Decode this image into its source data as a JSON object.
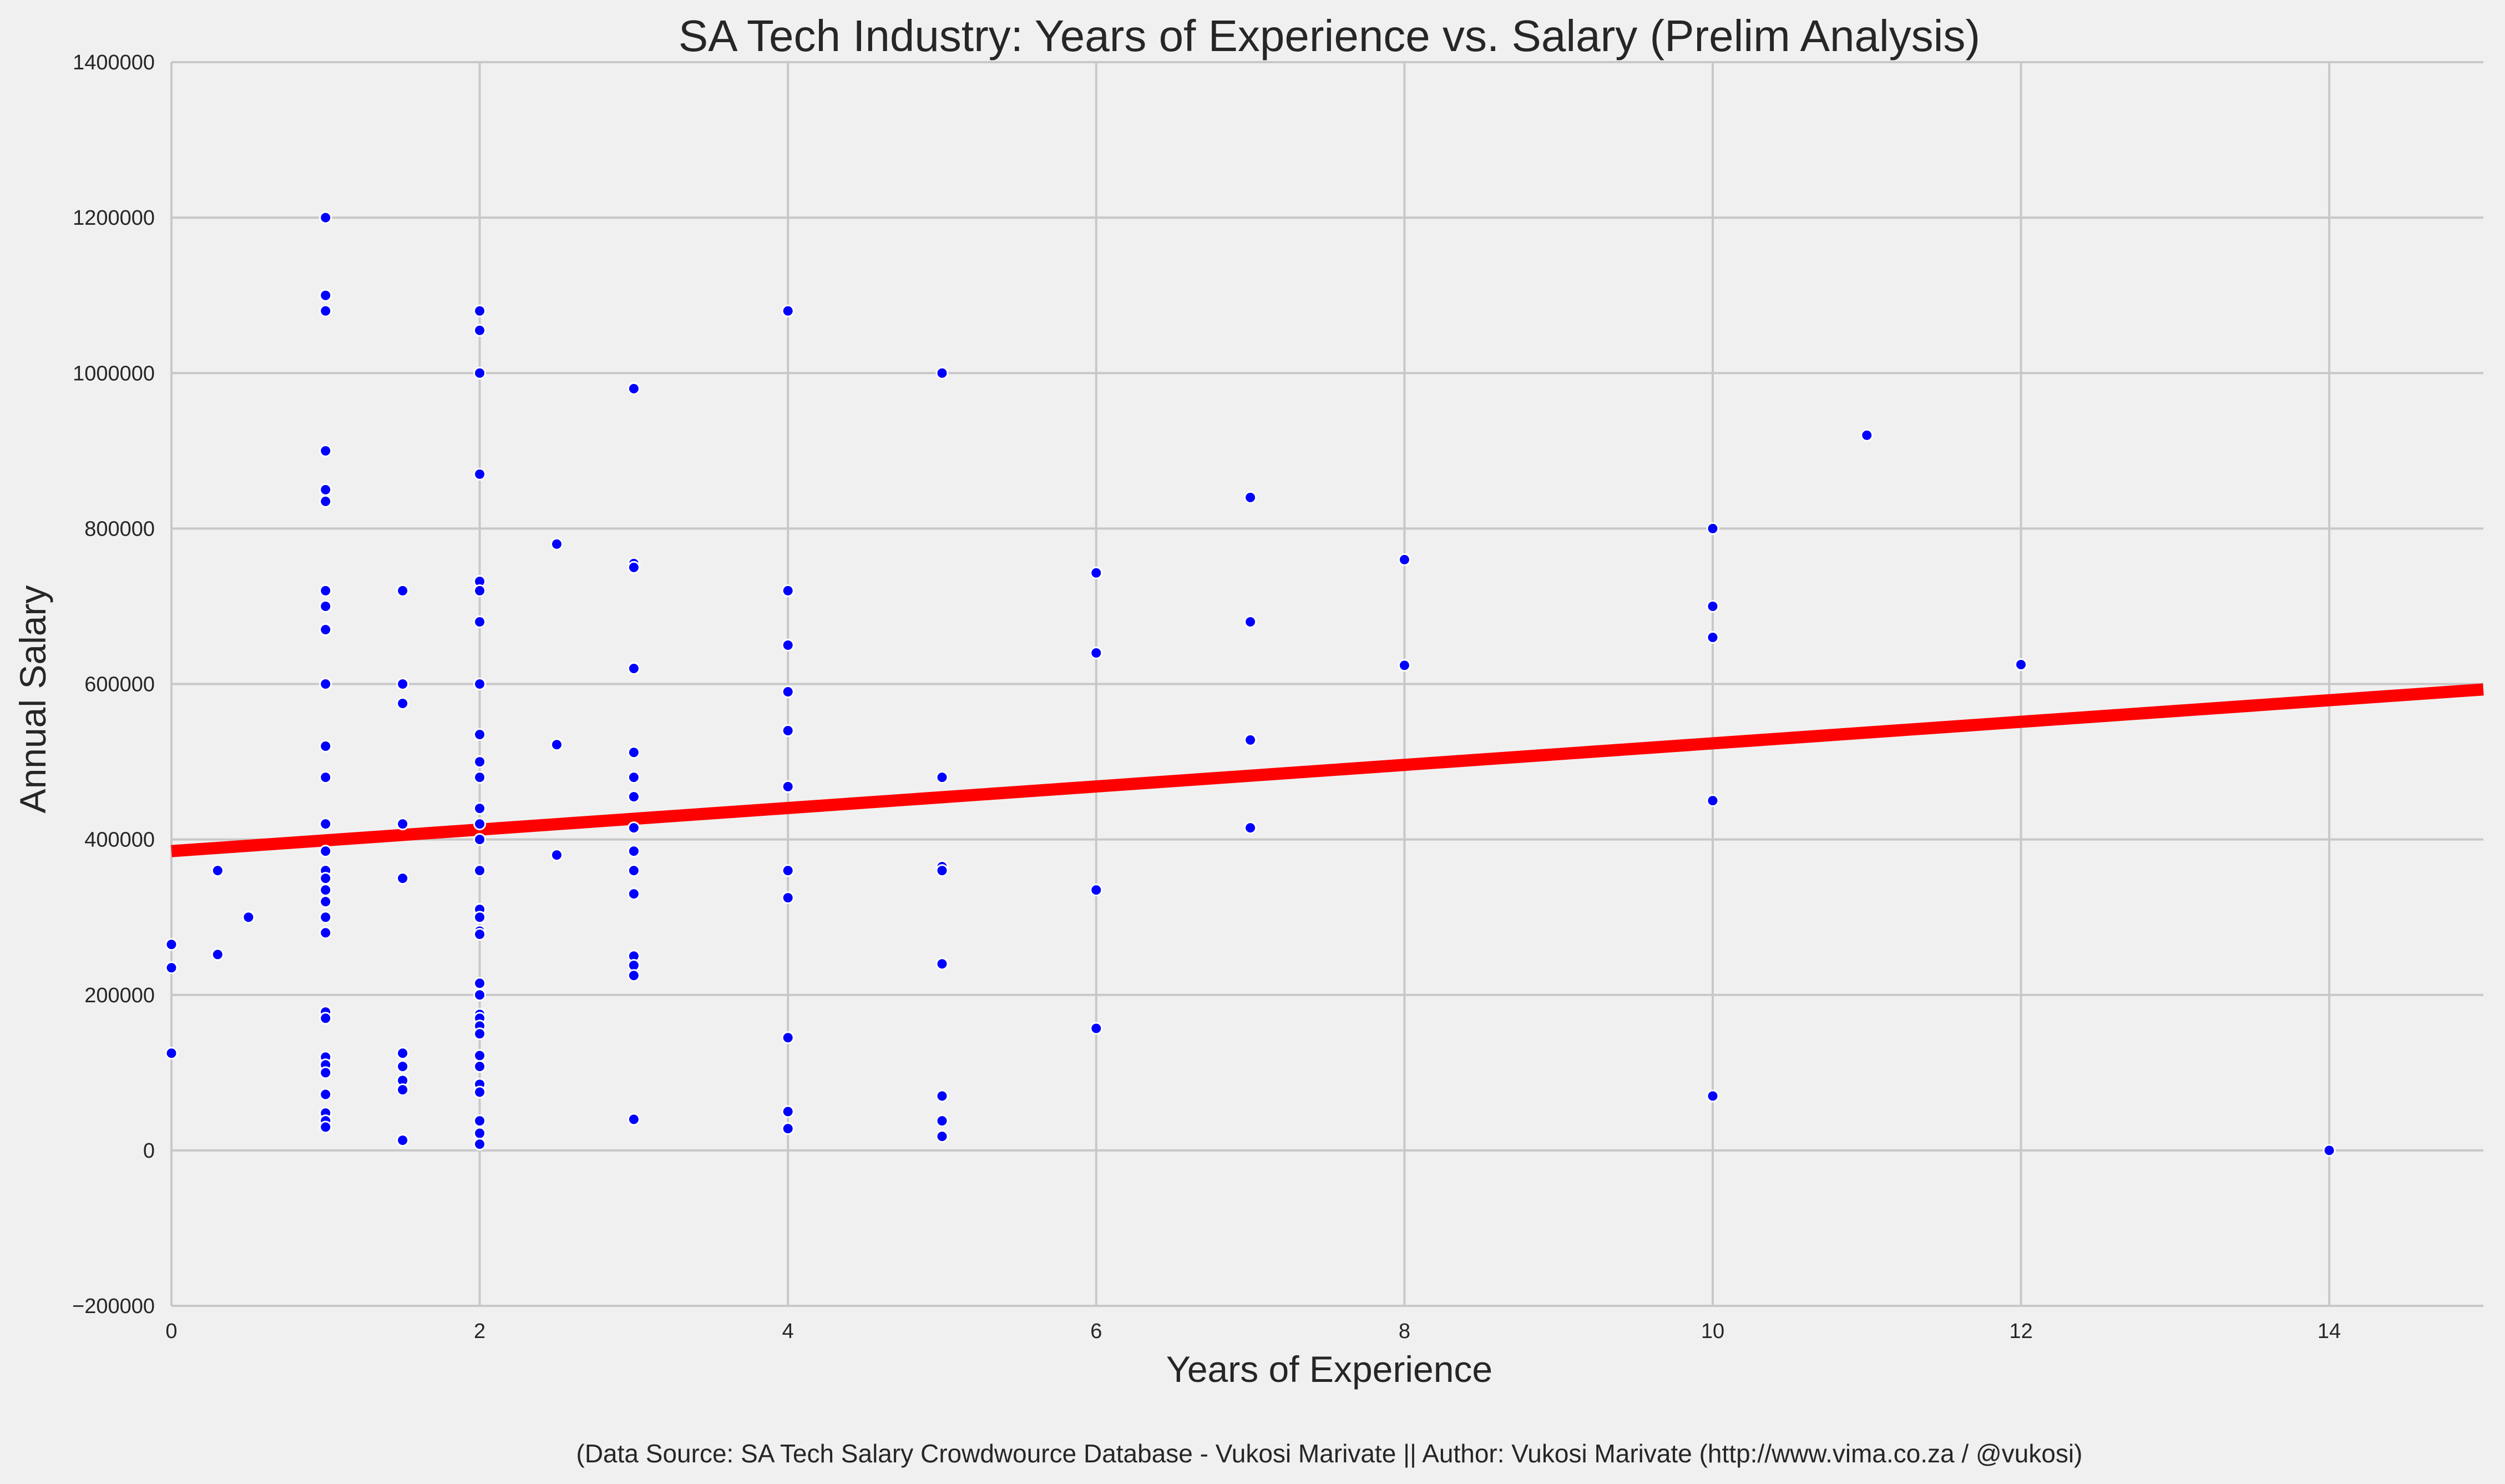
{
  "chart_data": {
    "type": "scatter",
    "title": "SA Tech Industry: Years of Experience vs. Salary (Prelim Analysis)",
    "xlabel": "Years of Experience",
    "ylabel": "Annual Salary",
    "xlim": [
      0,
      15
    ],
    "ylim": [
      -200000,
      1400000
    ],
    "xticks": [
      0,
      2,
      4,
      6,
      8,
      10,
      12,
      14
    ],
    "yticks": [
      -200000,
      0,
      200000,
      400000,
      600000,
      800000,
      1000000,
      1200000,
      1400000
    ],
    "grid": true,
    "colors": {
      "points": "#0000ff",
      "trend": "#ff0000",
      "background": "#f0f0f0",
      "grid": "#c8c8c8"
    },
    "trend_line": {
      "x": [
        0,
        15
      ],
      "y": [
        385000,
        593000
      ]
    },
    "points": [
      [
        0,
        265000
      ],
      [
        0,
        235000
      ],
      [
        0,
        125000
      ],
      [
        0.3,
        360000
      ],
      [
        0.3,
        252000
      ],
      [
        0.5,
        300000
      ],
      [
        1,
        1200000
      ],
      [
        1,
        1100000
      ],
      [
        1,
        1080000
      ],
      [
        1,
        900000
      ],
      [
        1,
        850000
      ],
      [
        1,
        835000
      ],
      [
        1,
        720000
      ],
      [
        1,
        700000
      ],
      [
        1,
        670000
      ],
      [
        1,
        600000
      ],
      [
        1,
        520000
      ],
      [
        1,
        480000
      ],
      [
        1,
        420000
      ],
      [
        1,
        385000
      ],
      [
        1,
        360000
      ],
      [
        1,
        350000
      ],
      [
        1,
        335000
      ],
      [
        1,
        320000
      ],
      [
        1,
        300000
      ],
      [
        1,
        280000
      ],
      [
        1,
        178000
      ],
      [
        1,
        170000
      ],
      [
        1,
        120000
      ],
      [
        1,
        110000
      ],
      [
        1,
        100000
      ],
      [
        1,
        72000
      ],
      [
        1,
        48000
      ],
      [
        1,
        38000
      ],
      [
        1,
        30000
      ],
      [
        1.5,
        720000
      ],
      [
        1.5,
        600000
      ],
      [
        1.5,
        575000
      ],
      [
        1.5,
        420000
      ],
      [
        1.5,
        350000
      ],
      [
        1.5,
        125000
      ],
      [
        1.5,
        108000
      ],
      [
        1.5,
        90000
      ],
      [
        1.5,
        78000
      ],
      [
        1.5,
        13000
      ],
      [
        2,
        1080000
      ],
      [
        2,
        1055000
      ],
      [
        2,
        1000000
      ],
      [
        2,
        870000
      ],
      [
        2,
        732000
      ],
      [
        2,
        720000
      ],
      [
        2,
        680000
      ],
      [
        2,
        600000
      ],
      [
        2,
        535000
      ],
      [
        2,
        500000
      ],
      [
        2,
        480000
      ],
      [
        2,
        440000
      ],
      [
        2,
        420000
      ],
      [
        2,
        400000
      ],
      [
        2,
        360000
      ],
      [
        2,
        310000
      ],
      [
        2,
        300000
      ],
      [
        2,
        282000
      ],
      [
        2,
        278000
      ],
      [
        2,
        215000
      ],
      [
        2,
        200000
      ],
      [
        2,
        175000
      ],
      [
        2,
        170000
      ],
      [
        2,
        160000
      ],
      [
        2,
        150000
      ],
      [
        2,
        122000
      ],
      [
        2,
        108000
      ],
      [
        2,
        85000
      ],
      [
        2,
        75000
      ],
      [
        2,
        38000
      ],
      [
        2,
        22000
      ],
      [
        2,
        8000
      ],
      [
        2.5,
        780000
      ],
      [
        2.5,
        522000
      ],
      [
        2.5,
        380000
      ],
      [
        3,
        980000
      ],
      [
        3,
        755000
      ],
      [
        3,
        750000
      ],
      [
        3,
        620000
      ],
      [
        3,
        512000
      ],
      [
        3,
        480000
      ],
      [
        3,
        455000
      ],
      [
        3,
        415000
      ],
      [
        3,
        385000
      ],
      [
        3,
        360000
      ],
      [
        3,
        330000
      ],
      [
        3,
        250000
      ],
      [
        3,
        238000
      ],
      [
        3,
        225000
      ],
      [
        3,
        40000
      ],
      [
        4,
        1080000
      ],
      [
        4,
        720000
      ],
      [
        4,
        650000
      ],
      [
        4,
        590000
      ],
      [
        4,
        540000
      ],
      [
        4,
        468000
      ],
      [
        4,
        360000
      ],
      [
        4,
        325000
      ],
      [
        4,
        145000
      ],
      [
        4,
        50000
      ],
      [
        4,
        28000
      ],
      [
        5,
        1000000
      ],
      [
        5,
        480000
      ],
      [
        5,
        365000
      ],
      [
        5,
        360000
      ],
      [
        5,
        240000
      ],
      [
        5,
        70000
      ],
      [
        5,
        38000
      ],
      [
        5,
        18000
      ],
      [
        6,
        743000
      ],
      [
        6,
        640000
      ],
      [
        6,
        335000
      ],
      [
        6,
        157000
      ],
      [
        7,
        840000
      ],
      [
        7,
        680000
      ],
      [
        7,
        528000
      ],
      [
        7,
        415000
      ],
      [
        8,
        760000
      ],
      [
        8,
        624000
      ],
      [
        10,
        800000
      ],
      [
        10,
        700000
      ],
      [
        10,
        660000
      ],
      [
        10,
        450000
      ],
      [
        10,
        70000
      ],
      [
        11,
        920000
      ],
      [
        12,
        625000
      ],
      [
        14,
        0
      ]
    ]
  },
  "footer": "(Data Source: SA Tech Salary Crowdwource Database - Vukosi Marivate || Author: Vukosi Marivate (http://www.vima.co.za / @vukosi)"
}
